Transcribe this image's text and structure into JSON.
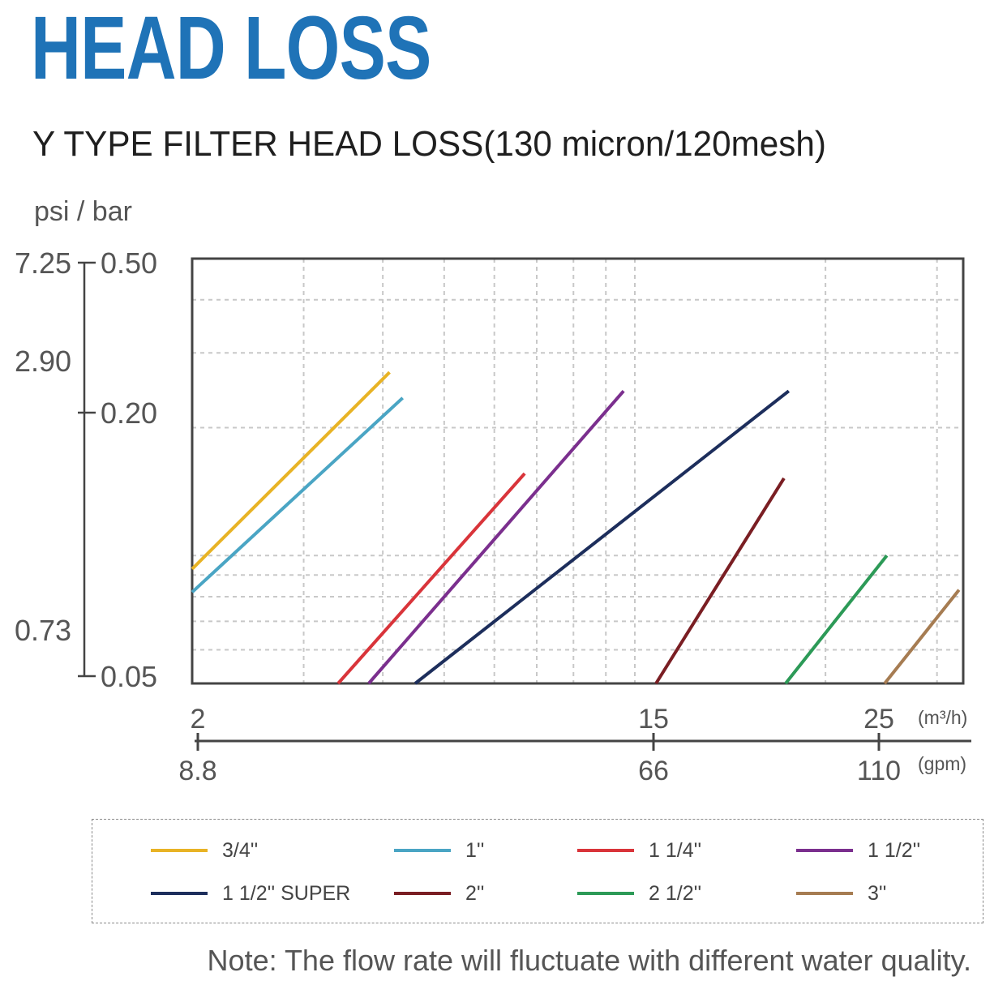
{
  "header": {
    "title": "HEAD LOSS",
    "title_color": "#1f73b7"
  },
  "chart_data": {
    "type": "line",
    "title": "Y TYPE FILTER HEAD LOSS(130 micron/120mesh)",
    "ylabel": "psi / bar",
    "y_scale": "log",
    "x_scale": "log",
    "ylim_bar": [
      0.05,
      0.5
    ],
    "xlim_m3h": [
      2,
      33
    ],
    "grid": true,
    "legend_position": "bottom",
    "y_ticks_bar": [
      "0.50",
      "0.20",
      "0.05"
    ],
    "y_ticks_psi": [
      "7.25",
      "2.90",
      "0.73"
    ],
    "x_ticks_m3h": [
      "2",
      "15",
      "25"
    ],
    "x_unit_m3h": "(m³/h)",
    "x_ticks_gpm": [
      "8.8",
      "66",
      "110"
    ],
    "x_unit_gpm": "(gpm)",
    "series": [
      {
        "name": "3/4''",
        "color": "#e8b325",
        "x": [
          2,
          4.1
        ],
        "y": [
          0.093,
          0.27
        ]
      },
      {
        "name": "1''",
        "color": "#4aa5c4",
        "x": [
          2,
          4.3
        ],
        "y": [
          0.082,
          0.235
        ]
      },
      {
        "name": "1 1/4''",
        "color": "#d9343a",
        "x": [
          3.4,
          6.7
        ],
        "y": [
          0.05,
          0.156
        ]
      },
      {
        "name": "1 1/2''",
        "color": "#7b2f8e",
        "x": [
          3.8,
          9.6
        ],
        "y": [
          0.05,
          0.244
        ]
      },
      {
        "name": "1 1/2'' SUPER",
        "color": "#1d2e5c",
        "x": [
          4.5,
          17.5
        ],
        "y": [
          0.05,
          0.244
        ]
      },
      {
        "name": "2''",
        "color": "#7a1e23",
        "x": [
          10.8,
          17.2
        ],
        "y": [
          0.05,
          0.152
        ]
      },
      {
        "name": "2 1/2''",
        "color": "#2c9a57",
        "x": [
          17.3,
          25
        ],
        "y": [
          0.05,
          0.1
        ]
      },
      {
        "name": "3''",
        "color": "#a67c52",
        "x": [
          24.8,
          32.5
        ],
        "y": [
          0.05,
          0.083
        ]
      }
    ]
  },
  "note": "Note: The flow rate will fluctuate with different water quality."
}
